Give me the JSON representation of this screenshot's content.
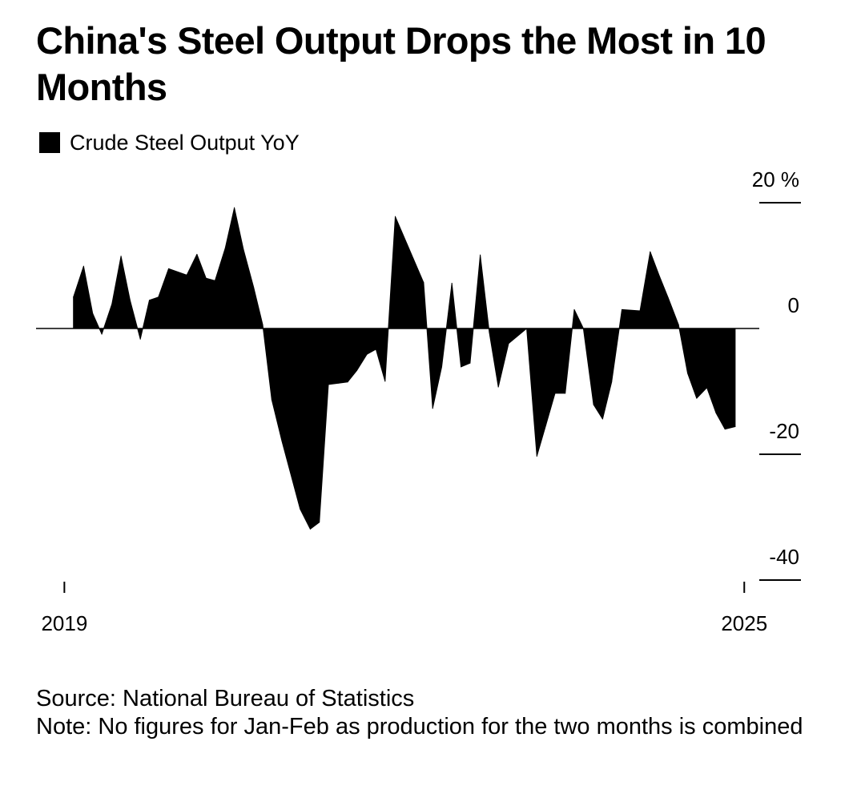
{
  "title": "China's Steel Output Drops the Most in 10 Months",
  "legend": {
    "label": "Crude Steel Output YoY",
    "color": "#000000"
  },
  "source": "Source: National Bureau of Statistics",
  "note": "Note: No figures for Jan-Feb as production for the two months is combined",
  "chart_data": {
    "type": "area",
    "title": "China's Steel Output Drops the Most in 10 Months",
    "series": [
      {
        "name": "Crude Steel Output YoY",
        "color": "#000000",
        "x": [
          2019.08,
          2019.17,
          2019.25,
          2019.33,
          2019.42,
          2019.5,
          2019.58,
          2019.67,
          2019.75,
          2019.83,
          2019.92,
          2020.08,
          2020.17,
          2020.25,
          2020.33,
          2020.42,
          2020.5,
          2020.58,
          2020.67,
          2020.75,
          2020.83,
          2020.92,
          2021.08,
          2021.17,
          2021.25,
          2021.33,
          2021.42,
          2021.5,
          2021.58,
          2021.67,
          2021.75,
          2021.83,
          2021.92,
          2022.08,
          2022.17,
          2022.25,
          2022.33,
          2022.42,
          2022.5,
          2022.58,
          2022.67,
          2022.75,
          2022.83,
          2022.92,
          2023.08,
          2023.17,
          2023.25,
          2023.33,
          2023.42,
          2023.5,
          2023.58,
          2023.67,
          2023.75,
          2023.83,
          2023.92,
          2024.08,
          2024.17,
          2024.25,
          2024.33,
          2024.42,
          2024.5,
          2024.58,
          2024.67,
          2024.75,
          2024.83,
          2024.92
        ],
        "values": [
          5,
          9.9,
          2.4,
          -0.9,
          3.9,
          11.5,
          4.5,
          -1.7,
          4.5,
          5,
          9.5,
          8.5,
          11.8,
          8,
          7.6,
          12.8,
          19.2,
          12.6,
          6.6,
          0.6,
          -11.3,
          -17.9,
          -28.7,
          -31.9,
          -30.8,
          -8.9,
          -8.7,
          -8.5,
          -6.7,
          -4.1,
          -3.3,
          -8.4,
          17.8,
          11.1,
          7.3,
          -12.7,
          -6.1,
          7.2,
          -6.1,
          -5.5,
          11.7,
          -0.6,
          -9.3,
          -2.4,
          0,
          -20.3,
          -15.3,
          -10.3,
          -10.3,
          3,
          0,
          -12.1,
          -14.4,
          -8.5,
          3,
          2.8,
          12.2,
          8.4,
          4.8,
          0.6,
          -7.1,
          -11.1,
          -9.4,
          -13.4,
          -16,
          -15.6
        ],
        "cutoff_x": 2025.0
      }
    ],
    "xlabel": "",
    "ylabel": "",
    "x_ticks": [
      "2019",
      "2025"
    ],
    "y_ticks": [
      "20 %",
      "0",
      "-20",
      "-40"
    ],
    "y_tick_values": [
      20,
      0,
      -20,
      -40
    ],
    "ylim": [
      -40,
      20
    ],
    "xlim": [
      2018.75,
      2025.5
    ],
    "grid": false,
    "legend_position": "top-left",
    "y_axis_side": "right"
  }
}
